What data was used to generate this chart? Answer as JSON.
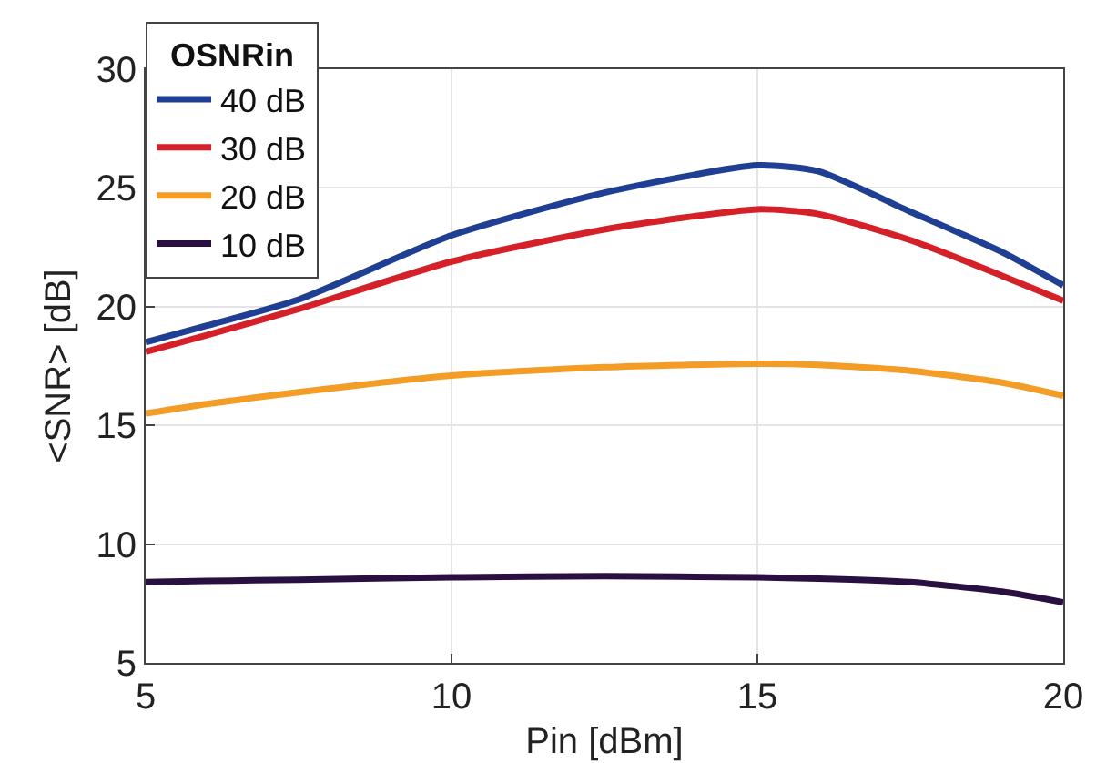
{
  "chart_data": {
    "type": "line",
    "xlabel": "Pin [dBm]",
    "ylabel": "<SNR> [dB]",
    "legend_title": "OSNRin",
    "x": [
      5,
      6,
      7.5,
      10,
      12.5,
      15,
      16,
      17.5,
      19,
      20
    ],
    "series": [
      {
        "name": "40 dB",
        "color": "#1f3f94",
        "values": [
          18.5,
          19.2,
          20.3,
          23.0,
          24.8,
          25.95,
          25.7,
          24.0,
          22.3,
          20.9
        ]
      },
      {
        "name": "30 dB",
        "color": "#d62028",
        "values": [
          18.1,
          18.8,
          19.9,
          21.9,
          23.25,
          24.1,
          23.9,
          22.8,
          21.3,
          20.25
        ]
      },
      {
        "name": "20 dB",
        "color": "#f39c26",
        "values": [
          15.5,
          15.9,
          16.4,
          17.1,
          17.45,
          17.6,
          17.55,
          17.3,
          16.8,
          16.25
        ]
      },
      {
        "name": "10 dB",
        "color": "#2a1040",
        "values": [
          8.4,
          8.45,
          8.5,
          8.6,
          8.65,
          8.6,
          8.55,
          8.4,
          8.0,
          7.55
        ]
      }
    ],
    "xlim": [
      5,
      20
    ],
    "xticks": [
      5,
      10,
      15,
      20
    ],
    "ylim": [
      5,
      30
    ],
    "yticks": [
      5,
      10,
      15,
      20,
      25,
      30
    ],
    "grid": true,
    "legend": "top left",
    "line_style": "solid",
    "marker": "none"
  }
}
